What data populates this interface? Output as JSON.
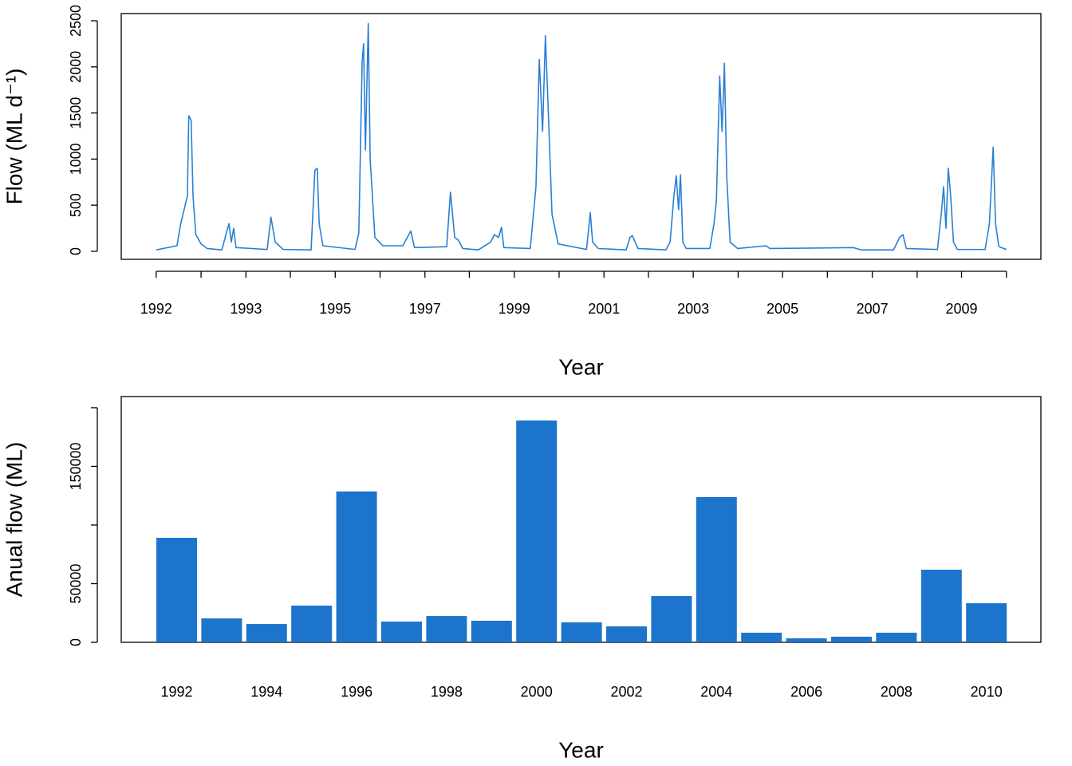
{
  "chart_data": [
    {
      "type": "line",
      "color": "#2a7fd4",
      "xlabel": "Year",
      "ylabel": "Flow (ML d⁻¹)",
      "xlim": [
        1991.26,
        2010.73
      ],
      "ylim": [
        -87,
        2578
      ],
      "xticks": [
        {
          "value": 1992.0,
          "label": "1992"
        },
        {
          "value": 1992.95,
          "label": null
        },
        {
          "value": 1993.9,
          "label": "1993"
        },
        {
          "value": 1994.84,
          "label": null
        },
        {
          "value": 1995.79,
          "label": "1995"
        },
        {
          "value": 1996.74,
          "label": null
        },
        {
          "value": 1997.69,
          "label": "1997"
        },
        {
          "value": 1998.63,
          "label": null
        },
        {
          "value": 1999.58,
          "label": "1999"
        },
        {
          "value": 2000.53,
          "label": null
        },
        {
          "value": 2001.48,
          "label": "2001"
        },
        {
          "value": 2002.42,
          "label": null
        },
        {
          "value": 2003.37,
          "label": "2003"
        },
        {
          "value": 2004.32,
          "label": null
        },
        {
          "value": 2005.26,
          "label": "2005"
        },
        {
          "value": 2006.21,
          "label": null
        },
        {
          "value": 2007.16,
          "label": "2007"
        },
        {
          "value": 2008.11,
          "label": null
        },
        {
          "value": 2009.05,
          "label": "2009"
        },
        {
          "value": 2010.0,
          "label": null
        }
      ],
      "yticks": [
        0,
        500,
        1000,
        1500,
        2000,
        2500
      ],
      "x": [
        1992.0,
        1992.44,
        1992.52,
        1992.66,
        1992.69,
        1992.74,
        1992.78,
        1992.84,
        1992.95,
        1993.08,
        1993.39,
        1993.45,
        1993.54,
        1993.59,
        1993.64,
        1993.69,
        1994.35,
        1994.43,
        1994.52,
        1994.69,
        1995.28,
        1995.36,
        1995.41,
        1995.45,
        1995.53,
        1996.21,
        1996.29,
        1996.36,
        1996.39,
        1996.43,
        1996.46,
        1996.49,
        1996.53,
        1996.63,
        1996.8,
        1997.22,
        1997.39,
        1997.47,
        1998.15,
        1998.23,
        1998.32,
        1998.4,
        1998.49,
        1998.82,
        1999.08,
        1999.16,
        1999.25,
        1999.31,
        1999.36,
        1999.92,
        2000.04,
        2000.11,
        2000.18,
        2000.24,
        2000.31,
        2000.38,
        2000.51,
        2001.11,
        2001.19,
        2001.24,
        2001.36,
        2001.95,
        2002.03,
        2002.08,
        2002.2,
        2002.79,
        2002.88,
        2002.96,
        2003.01,
        2003.06,
        2003.1,
        2003.15,
        2003.22,
        2003.72,
        2003.81,
        2003.86,
        2003.93,
        2003.98,
        2004.03,
        2004.08,
        2004.15,
        2004.31,
        2004.91,
        2004.99,
        2006.76,
        2006.93,
        2007.61,
        2007.74,
        2007.81,
        2007.88,
        2008.54,
        2008.62,
        2008.67,
        2008.72,
        2008.77,
        2008.82,
        2008.88,
        2008.96,
        2009.55,
        2009.64,
        2009.72,
        2009.77,
        2009.84,
        2010.0
      ],
      "values": [
        15,
        60,
        300,
        600,
        1470,
        1420,
        600,
        180,
        80,
        30,
        15,
        130,
        300,
        100,
        250,
        40,
        20,
        370,
        100,
        20,
        15,
        880,
        900,
        300,
        60,
        20,
        200,
        2050,
        2250,
        1100,
        1800,
        2470,
        1000,
        150,
        60,
        60,
        220,
        40,
        50,
        640,
        150,
        120,
        30,
        15,
        100,
        180,
        150,
        260,
        40,
        30,
        700,
        2080,
        1300,
        2340,
        1400,
        400,
        80,
        20,
        420,
        100,
        30,
        15,
        150,
        170,
        30,
        15,
        100,
        600,
        820,
        450,
        830,
        100,
        30,
        30,
        300,
        550,
        1900,
        1300,
        2040,
        800,
        100,
        30,
        60,
        30,
        40,
        15,
        15,
        150,
        180,
        30,
        20,
        400,
        700,
        250,
        900,
        600,
        100,
        20,
        20,
        300,
        1130,
        300,
        50,
        20
      ]
    },
    {
      "type": "bar",
      "color": "#1c74cc",
      "xlabel": "Year",
      "ylabel": "Anual flow (ML)",
      "ylim": [
        0,
        209500
      ],
      "yticks": [
        0,
        50000,
        {
          "value": 100000,
          "label": null
        },
        150000,
        {
          "value": 200000,
          "label": null
        }
      ],
      "categories": [
        "1992",
        null,
        "1994",
        null,
        "1996",
        null,
        "1998",
        null,
        "2000",
        null,
        "2002",
        null,
        "2004",
        null,
        "2006",
        null,
        "2008",
        null,
        "2010"
      ],
      "values": [
        89100,
        20400,
        15600,
        31300,
        128600,
        17700,
        22400,
        18400,
        189100,
        17000,
        13600,
        39500,
        123800,
        8200,
        3400,
        4800,
        8200,
        61900,
        33300
      ]
    }
  ]
}
